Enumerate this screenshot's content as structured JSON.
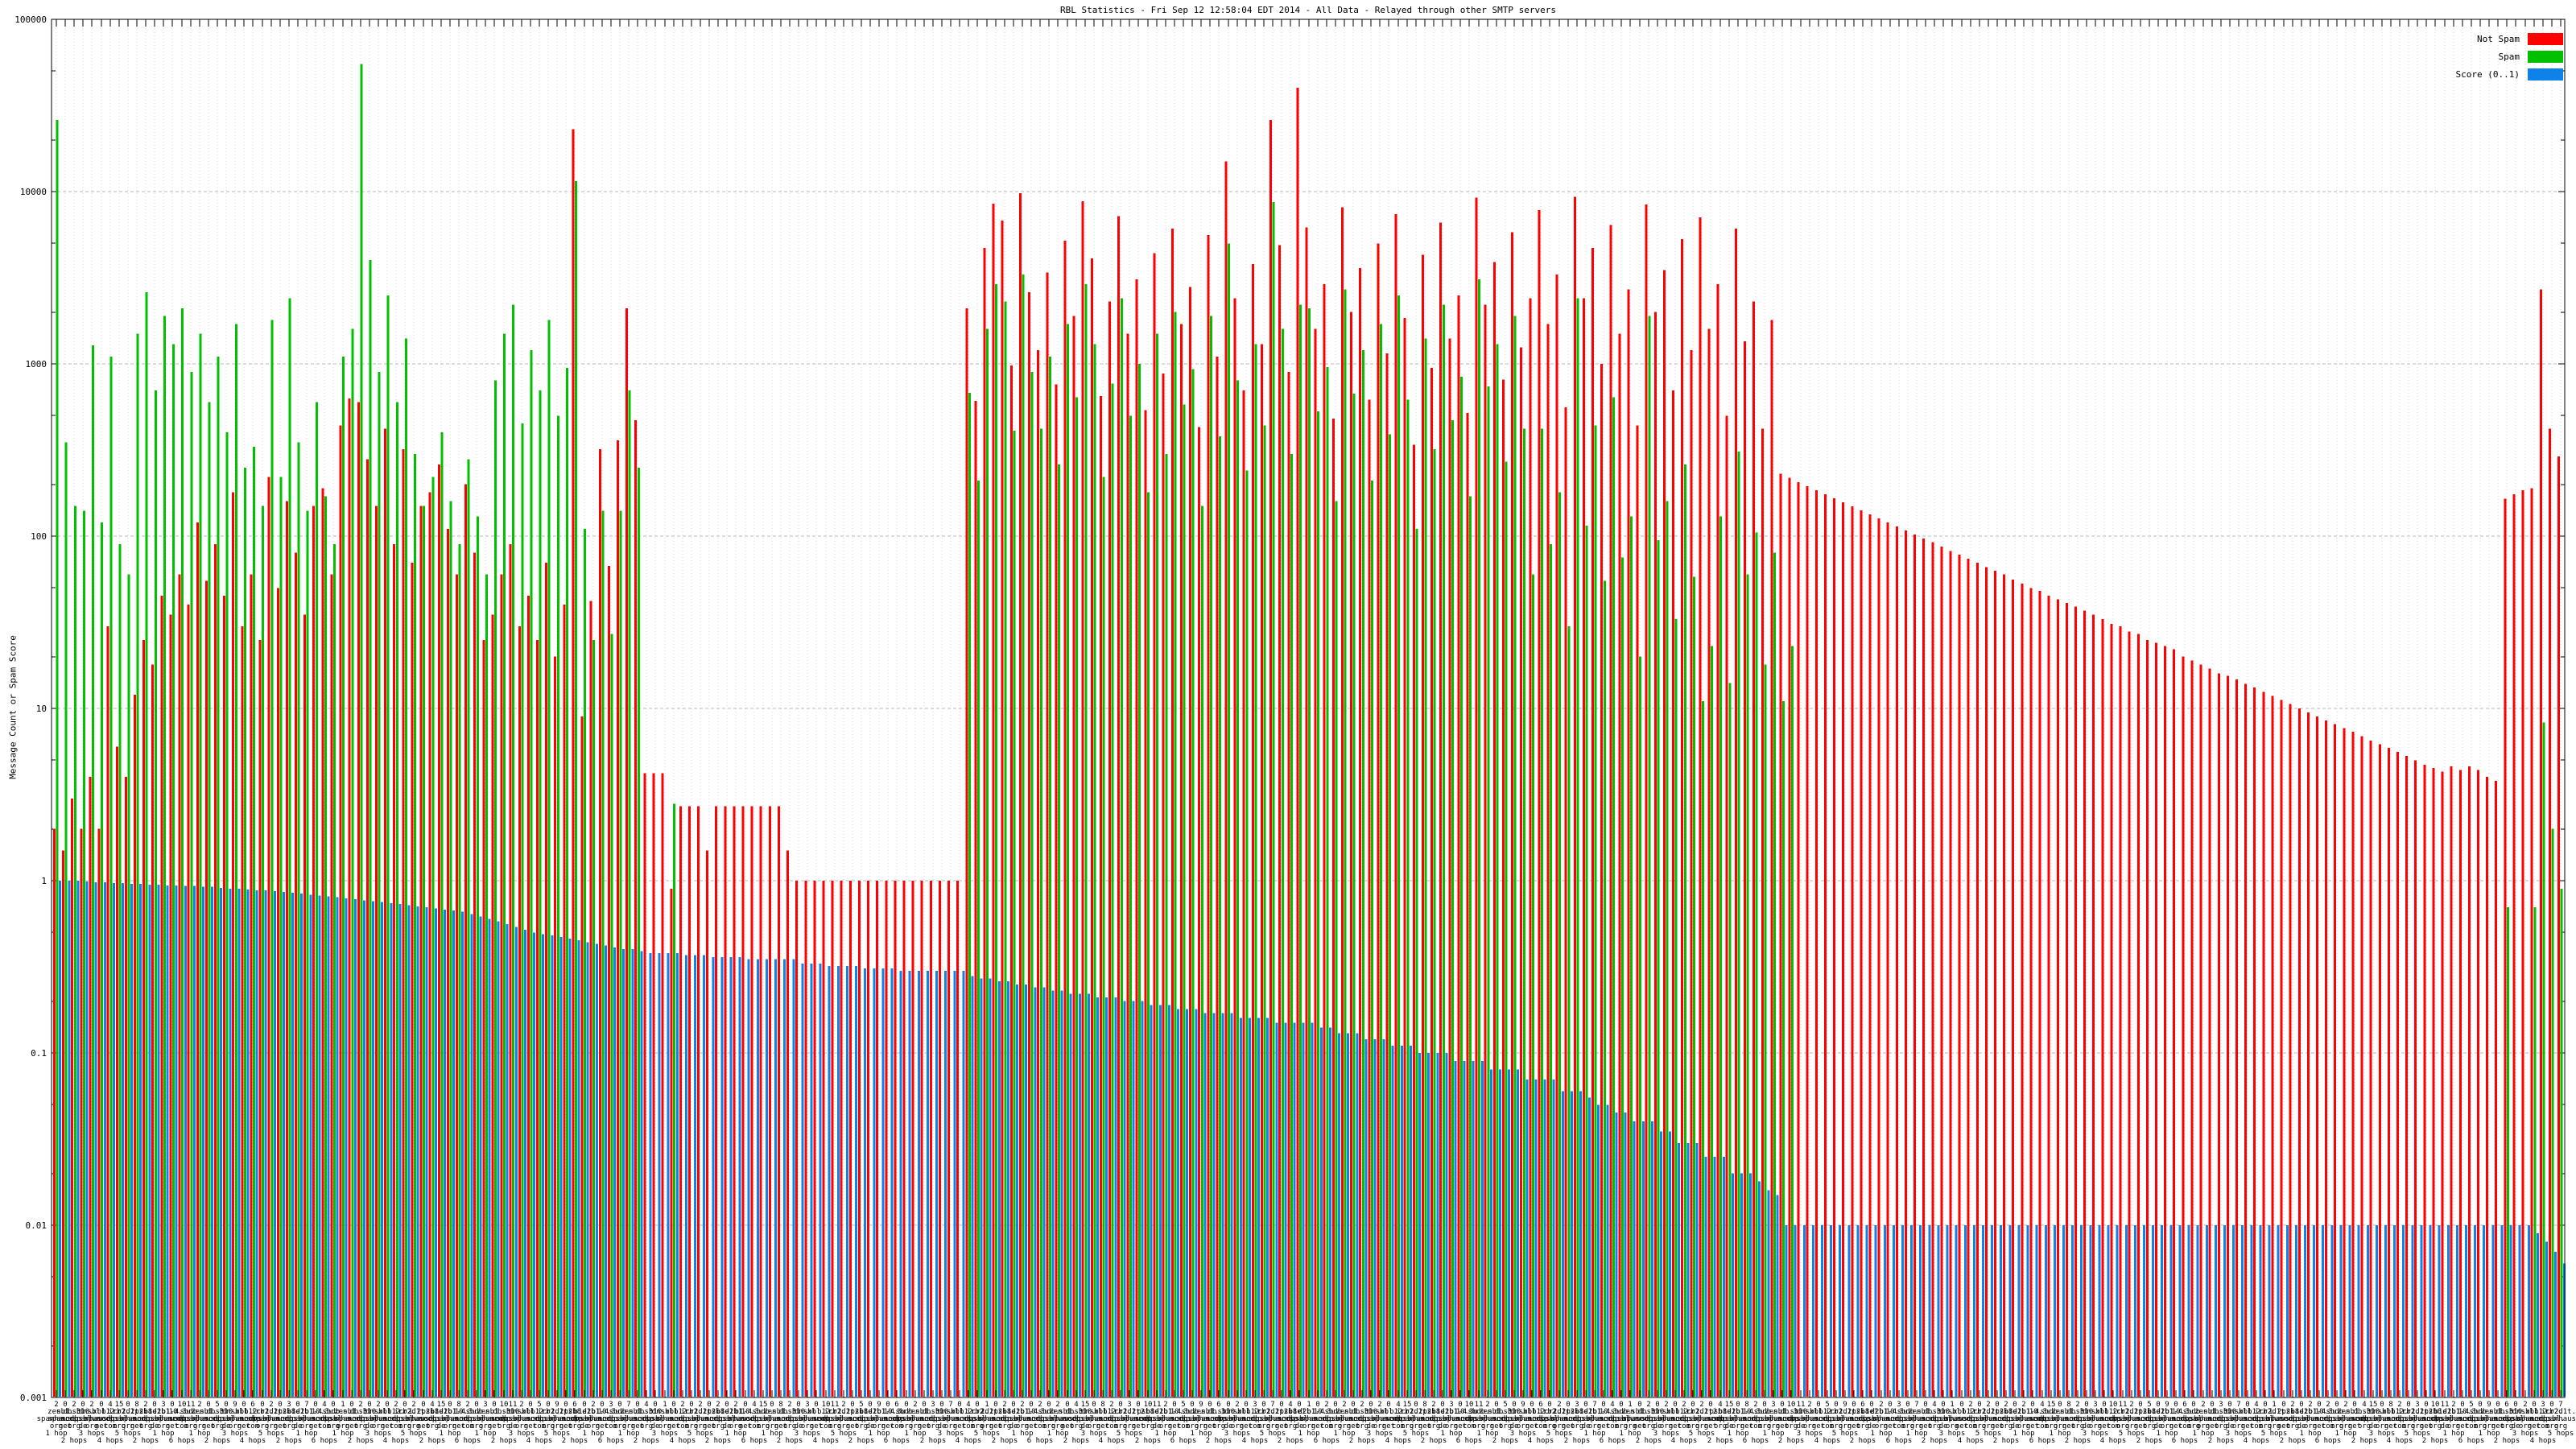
{
  "legend": [
    {
      "label": "Not Spam",
      "color": "#ff0000"
    },
    {
      "label": "Spam",
      "color": "#00c000"
    },
    {
      "label": "Score (0..1)",
      "color": "#0e82e8"
    }
  ],
  "yaxis": {
    "label": "Message Count or Spam Score",
    "tick_labels": [
      "100000",
      "10000",
      "1000",
      "100",
      "10",
      "1",
      "0.1",
      "0.01",
      "0.001"
    ]
  },
  "xaxis": {
    "note": "dense overlapping per-bar labels: count, RBL host name fragments, hop count",
    "digits": [
      "2",
      "0",
      "2",
      "0",
      "2",
      "0",
      "4",
      "15",
      "0",
      "8",
      "2",
      "0",
      "3",
      "0",
      "10",
      "11",
      "2",
      "0",
      "5",
      "0",
      "9",
      "0",
      "6",
      "0",
      "2",
      "0",
      "3",
      "0",
      "7",
      "0",
      "4",
      "0",
      "1",
      "0",
      "2",
      "0"
    ],
    "hosts": [
      "zen.",
      "sb1.",
      "db.3.",
      "sb10.",
      "dnsbl.",
      "xbl.",
      "b12.",
      "irb2.",
      "cr2d1t.",
      "1.2.2i.",
      "psb8.",
      "b1e1.",
      "d2b1.",
      "b1-4.",
      "10.3u.",
      "sbdb."
    ],
    "rbls": [
      "spamhaus.",
      "spamcop.",
      "sorbs.",
      "dnsbl."
    ],
    "tlds": [
      "org",
      "net",
      "org",
      "de",
      "org",
      "net",
      "com",
      "org"
    ],
    "hops": [
      "1 hop",
      "2 hops",
      "3 hops",
      "4 hops",
      "5 hops",
      "2 hops",
      "1 hop",
      "6 hops"
    ]
  },
  "chart_data": {
    "type": "bar",
    "title": "RBL Statistics - Fri Sep 12 12:58:04 EDT 2014 - All Data - Relayed through other SMTP servers",
    "ylabel": "Message Count or Spam Score",
    "xlabel": "",
    "y_log_scale": true,
    "ylim": [
      0.001,
      100000
    ],
    "grid": true,
    "legend_position": "top-right",
    "series_meta": [
      {
        "name": "Not Spam",
        "color": "#ff0000"
      },
      {
        "name": "Spam",
        "color": "#00c000"
      },
      {
        "name": "Score (0..1)",
        "color": "#0e82e8"
      }
    ],
    "groups_format": [
      "not_spam",
      "spam",
      "score"
    ],
    "groups": [
      [
        2,
        26000,
        1.0
      ],
      [
        1.5,
        350,
        1.0
      ],
      [
        3,
        150,
        1.0
      ],
      [
        2,
        140,
        0.99
      ],
      [
        4,
        1280,
        0.98
      ],
      [
        2,
        120,
        0.98
      ],
      [
        30,
        1100,
        0.97
      ],
      [
        6,
        90,
        0.97
      ],
      [
        4,
        60,
        0.96
      ],
      [
        12,
        1500,
        0.96
      ],
      [
        25,
        2600,
        0.95
      ],
      [
        18,
        700,
        0.95
      ],
      [
        45,
        1900,
        0.94
      ],
      [
        35,
        1300,
        0.94
      ],
      [
        60,
        2100,
        0.93
      ],
      [
        40,
        900,
        0.93
      ],
      [
        120,
        1500,
        0.92
      ],
      [
        55,
        600,
        0.92
      ],
      [
        90,
        1100,
        0.91
      ],
      [
        45,
        400,
        0.9
      ],
      [
        180,
        1700,
        0.9
      ],
      [
        30,
        250,
        0.89
      ],
      [
        60,
        330,
        0.88
      ],
      [
        25,
        150,
        0.88
      ],
      [
        220,
        1800,
        0.87
      ],
      [
        50,
        220,
        0.86
      ],
      [
        160,
        2400,
        0.85
      ],
      [
        80,
        350,
        0.84
      ],
      [
        35,
        140,
        0.83
      ],
      [
        150,
        600,
        0.82
      ],
      [
        190,
        170,
        0.81
      ],
      [
        60,
        90,
        0.8
      ],
      [
        440,
        1100,
        0.79
      ],
      [
        630,
        1600,
        0.78
      ],
      [
        600,
        55000,
        0.77
      ],
      [
        280,
        4000,
        0.76
      ],
      [
        150,
        900,
        0.75
      ],
      [
        420,
        2500,
        0.74
      ],
      [
        90,
        600,
        0.73
      ],
      [
        320,
        1400,
        0.72
      ],
      [
        70,
        300,
        0.71
      ],
      [
        150,
        150,
        0.7
      ],
      [
        180,
        220,
        0.69
      ],
      [
        260,
        400,
        0.68
      ],
      [
        110,
        160,
        0.67
      ],
      [
        60,
        90,
        0.66
      ],
      [
        200,
        280,
        0.64
      ],
      [
        80,
        130,
        0.62
      ],
      [
        25,
        60,
        0.6
      ],
      [
        35,
        800,
        0.58
      ],
      [
        60,
        1500,
        0.56
      ],
      [
        90,
        2200,
        0.54
      ],
      [
        30,
        450,
        0.52
      ],
      [
        45,
        1200,
        0.5
      ],
      [
        25,
        700,
        0.49
      ],
      [
        70,
        1800,
        0.48
      ],
      [
        20,
        500,
        0.47
      ],
      [
        40,
        950,
        0.46
      ],
      [
        23000,
        11500,
        0.45
      ],
      [
        9,
        110,
        0.44
      ],
      [
        42,
        25,
        0.43
      ],
      [
        320,
        140,
        0.42
      ],
      [
        67,
        27,
        0.41
      ],
      [
        360,
        140,
        0.4
      ],
      [
        2100,
        700,
        0.4
      ],
      [
        470,
        250,
        0.39
      ],
      [
        4.2,
        0,
        0.38
      ],
      [
        4.2,
        0,
        0.38
      ],
      [
        4.2,
        0,
        0.38
      ],
      [
        0.9,
        2.8,
        0.38
      ],
      [
        2.7,
        0,
        0.37
      ],
      [
        2.7,
        0,
        0.37
      ],
      [
        2.7,
        0,
        0.37
      ],
      [
        1.5,
        0,
        0.36
      ],
      [
        2.7,
        0,
        0.36
      ],
      [
        2.7,
        0,
        0.36
      ],
      [
        2.7,
        0,
        0.36
      ],
      [
        2.7,
        0,
        0.35
      ],
      [
        2.7,
        0,
        0.35
      ],
      [
        2.7,
        0,
        0.35
      ],
      [
        2.7,
        0,
        0.35
      ],
      [
        2.7,
        0,
        0.35
      ],
      [
        1.5,
        0,
        0.35
      ],
      [
        1,
        0,
        0.33
      ],
      [
        1,
        0,
        0.33
      ],
      [
        1,
        0,
        0.33
      ],
      [
        1,
        0,
        0.32
      ],
      [
        1,
        0,
        0.32
      ],
      [
        1,
        0,
        0.32
      ],
      [
        1,
        0,
        0.32
      ],
      [
        1,
        0,
        0.31
      ],
      [
        1,
        0,
        0.31
      ],
      [
        1,
        0,
        0.31
      ],
      [
        1,
        0,
        0.31
      ],
      [
        1,
        0,
        0.3
      ],
      [
        1,
        0,
        0.3
      ],
      [
        1,
        0,
        0.3
      ],
      [
        1,
        0,
        0.3
      ],
      [
        1,
        0,
        0.3
      ],
      [
        1,
        0,
        0.3
      ],
      [
        1,
        0,
        0.3
      ],
      [
        1,
        0,
        0.3
      ],
      [
        2100,
        680,
        0.28
      ],
      [
        610,
        210,
        0.27
      ],
      [
        4700,
        1600,
        0.27
      ],
      [
        8500,
        2900,
        0.26
      ],
      [
        6800,
        2300,
        0.26
      ],
      [
        980,
        410,
        0.25
      ],
      [
        9800,
        3300,
        0.25
      ],
      [
        2600,
        900,
        0.24
      ],
      [
        1200,
        420,
        0.24
      ],
      [
        3400,
        1100,
        0.23
      ],
      [
        760,
        260,
        0.23
      ],
      [
        5200,
        1700,
        0.22
      ],
      [
        1900,
        640,
        0.22
      ],
      [
        8800,
        2900,
        0.22
      ],
      [
        4100,
        1300,
        0.21
      ],
      [
        650,
        220,
        0.21
      ],
      [
        2300,
        770,
        0.21
      ],
      [
        7200,
        2400,
        0.2
      ],
      [
        1500,
        500,
        0.2
      ],
      [
        3100,
        1000,
        0.2
      ],
      [
        540,
        180,
        0.19
      ],
      [
        4400,
        1500,
        0.19
      ],
      [
        880,
        300,
        0.19
      ],
      [
        6100,
        2000,
        0.18
      ],
      [
        1700,
        580,
        0.18
      ],
      [
        2800,
        930,
        0.18
      ],
      [
        430,
        150,
        0.17
      ],
      [
        5600,
        1900,
        0.17
      ],
      [
        1100,
        380,
        0.17
      ],
      [
        15000,
        5000,
        0.17
      ],
      [
        2400,
        800,
        0.16
      ],
      [
        700,
        240,
        0.16
      ],
      [
        3800,
        1300,
        0.16
      ],
      [
        1300,
        440,
        0.16
      ],
      [
        26000,
        8700,
        0.15
      ],
      [
        4900,
        1600,
        0.15
      ],
      [
        900,
        300,
        0.15
      ],
      [
        40000,
        2200,
        0.15
      ],
      [
        6200,
        2100,
        0.15
      ],
      [
        1600,
        530,
        0.14
      ],
      [
        2900,
        960,
        0.14
      ],
      [
        480,
        160,
        0.13
      ],
      [
        8100,
        2700,
        0.13
      ],
      [
        2000,
        670,
        0.13
      ],
      [
        3600,
        1200,
        0.12
      ],
      [
        620,
        210,
        0.12
      ],
      [
        5000,
        1700,
        0.12
      ],
      [
        1150,
        390,
        0.11
      ],
      [
        7400,
        2500,
        0.11
      ],
      [
        1850,
        620,
        0.11
      ],
      [
        340,
        110,
        0.1
      ],
      [
        4300,
        1400,
        0.1
      ],
      [
        950,
        320,
        0.1
      ],
      [
        6600,
        2200,
        0.1
      ],
      [
        1400,
        470,
        0.09
      ],
      [
        2500,
        840,
        0.09
      ],
      [
        520,
        170,
        0.09
      ],
      [
        9200,
        3100,
        0.09
      ],
      [
        2200,
        740,
        0.08
      ],
      [
        3900,
        1300,
        0.08
      ],
      [
        810,
        270,
        0.08
      ],
      [
        5800,
        1900,
        0.08
      ],
      [
        1250,
        420,
        0.07
      ],
      [
        2400,
        60,
        0.07
      ],
      [
        7800,
        420,
        0.07
      ],
      [
        1700,
        90,
        0.07
      ],
      [
        3300,
        180,
        0.06
      ],
      [
        560,
        30,
        0.06
      ],
      [
        9300,
        2400,
        0.06
      ],
      [
        2400,
        115,
        0.055
      ],
      [
        4700,
        440,
        0.05
      ],
      [
        1000,
        55,
        0.05
      ],
      [
        6400,
        640,
        0.045
      ],
      [
        1500,
        75,
        0.045
      ],
      [
        2700,
        130,
        0.04
      ],
      [
        440,
        20,
        0.04
      ],
      [
        8400,
        1900,
        0.04
      ],
      [
        2000,
        95,
        0.035
      ],
      [
        3500,
        160,
        0.035
      ],
      [
        700,
        33,
        0.03
      ],
      [
        5300,
        260,
        0.03
      ],
      [
        1200,
        58,
        0.03
      ],
      [
        7100,
        11,
        0.025
      ],
      [
        1600,
        23,
        0.025
      ],
      [
        2900,
        130,
        0.025
      ],
      [
        500,
        14,
        0.02
      ],
      [
        6100,
        310,
        0.02
      ],
      [
        1350,
        60,
        0.02
      ],
      [
        2300,
        105,
        0.018
      ],
      [
        420,
        18,
        0.016
      ],
      [
        1800,
        80,
        0.015
      ],
      [
        230,
        11,
        0.01
      ],
      [
        218,
        23,
        0.01
      ],
      [
        206,
        0,
        0.01
      ],
      [
        195,
        0,
        0.01
      ],
      [
        185,
        0,
        0.01
      ],
      [
        175,
        0,
        0.01
      ],
      [
        166,
        0,
        0.01
      ],
      [
        157,
        0,
        0.01
      ],
      [
        149,
        0,
        0.01
      ],
      [
        141,
        0,
        0.01
      ],
      [
        134,
        0,
        0.01
      ],
      [
        127,
        0,
        0.01
      ],
      [
        120,
        0,
        0.01
      ],
      [
        114,
        0,
        0.01
      ],
      [
        108,
        0,
        0.01
      ],
      [
        102,
        0,
        0.01
      ],
      [
        97,
        0,
        0.01
      ],
      [
        92,
        0,
        0.01
      ],
      [
        87,
        0,
        0.01
      ],
      [
        82,
        0,
        0.01
      ],
      [
        78,
        0,
        0.01
      ],
      [
        74,
        0,
        0.01
      ],
      [
        70,
        0,
        0.01
      ],
      [
        66,
        0,
        0.01
      ],
      [
        63,
        0,
        0.01
      ],
      [
        60,
        0,
        0.01
      ],
      [
        56,
        0,
        0.01
      ],
      [
        53,
        0,
        0.01
      ],
      [
        50,
        0,
        0.01
      ],
      [
        48,
        0,
        0.01
      ],
      [
        45,
        0,
        0.01
      ],
      [
        43,
        0,
        0.01
      ],
      [
        41,
        0,
        0.01
      ],
      [
        39,
        0,
        0.01
      ],
      [
        37,
        0,
        0.01
      ],
      [
        35,
        0,
        0.01
      ],
      [
        33,
        0,
        0.01
      ],
      [
        31,
        0,
        0.01
      ],
      [
        30,
        0,
        0.01
      ],
      [
        28,
        0,
        0.01
      ],
      [
        27,
        0,
        0.01
      ],
      [
        25,
        0,
        0.01
      ],
      [
        24,
        0,
        0.01
      ],
      [
        23,
        0,
        0.01
      ],
      [
        22,
        0,
        0.01
      ],
      [
        20,
        0,
        0.01
      ],
      [
        19,
        0,
        0.01
      ],
      [
        18,
        0,
        0.01
      ],
      [
        17,
        0,
        0.01
      ],
      [
        16,
        0,
        0.01
      ],
      [
        15.5,
        0,
        0.01
      ],
      [
        14.7,
        0,
        0.01
      ],
      [
        13.9,
        0,
        0.01
      ],
      [
        13.2,
        0,
        0.01
      ],
      [
        12.5,
        0,
        0.01
      ],
      [
        11.8,
        0,
        0.01
      ],
      [
        11.2,
        0,
        0.01
      ],
      [
        10.6,
        0,
        0.01
      ],
      [
        10,
        0,
        0.01
      ],
      [
        9.5,
        0,
        0.01
      ],
      [
        9,
        0,
        0.01
      ],
      [
        8.5,
        0,
        0.01
      ],
      [
        8.1,
        0,
        0.01
      ],
      [
        7.7,
        0,
        0.01
      ],
      [
        7.3,
        0,
        0.01
      ],
      [
        6.9,
        0,
        0.01
      ],
      [
        6.5,
        0,
        0.01
      ],
      [
        6.2,
        0,
        0.01
      ],
      [
        5.9,
        0,
        0.01
      ],
      [
        5.6,
        0,
        0.01
      ],
      [
        5.3,
        0,
        0.01
      ],
      [
        5,
        0,
        0.01
      ],
      [
        4.7,
        0,
        0.01
      ],
      [
        4.5,
        0,
        0.01
      ],
      [
        4.3,
        0,
        0.01
      ],
      [
        4.6,
        0,
        0.01
      ],
      [
        4.4,
        0,
        0.01
      ],
      [
        4.6,
        0,
        0.01
      ],
      [
        4.4,
        0,
        0.01
      ],
      [
        4.0,
        0,
        0.01
      ],
      [
        3.8,
        0,
        0.01
      ],
      [
        165,
        0.7,
        0.01
      ],
      [
        175,
        0,
        0.01
      ],
      [
        185,
        0,
        0.01
      ],
      [
        190,
        0.7,
        0.009
      ],
      [
        2700,
        8.3,
        0.008
      ],
      [
        420,
        2,
        0.007
      ],
      [
        290,
        0.9,
        0.006
      ]
    ]
  }
}
